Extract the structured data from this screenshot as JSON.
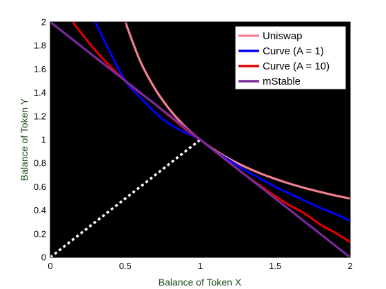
{
  "chart_data": {
    "type": "line",
    "title": "",
    "xlabel": "Balance of Token X",
    "ylabel": "Balance of Token Y",
    "xlim": [
      0,
      2
    ],
    "ylim": [
      0,
      2
    ],
    "xticks": [
      0,
      0.5,
      1,
      1.5,
      2
    ],
    "xtick_labels": [
      "0",
      "0.5",
      "1",
      "1.5",
      "2"
    ],
    "yticks": [
      0,
      0.2,
      0.4,
      0.6,
      0.8,
      1,
      1.2,
      1.4,
      1.6,
      1.8,
      2
    ],
    "ytick_labels": [
      "0",
      "0.2",
      "0.4",
      "0.6",
      "0.8",
      "1",
      "1.2",
      "1.4",
      "1.6",
      "1.8",
      "2"
    ],
    "plot_background": "#000000",
    "grid": false,
    "legend_position": "top-right",
    "series": [
      {
        "name": "Uniswap",
        "color": "#f08090",
        "x": [
          0.5,
          0.6,
          0.7,
          0.8,
          0.9,
          1.0,
          1.1,
          1.2,
          1.3,
          1.4,
          1.5,
          1.6,
          1.7,
          1.8,
          1.9,
          2.0
        ],
        "y": [
          2.0,
          1.667,
          1.429,
          1.25,
          1.111,
          1.0,
          0.909,
          0.833,
          0.769,
          0.714,
          0.667,
          0.625,
          0.588,
          0.556,
          0.526,
          0.5
        ]
      },
      {
        "name": "Curve (A = 1)",
        "color": "#0000ee",
        "x": [
          0.3,
          0.4,
          0.5,
          0.6,
          0.7,
          0.8,
          0.9,
          1.0,
          1.1,
          1.2,
          1.3,
          1.4,
          1.5,
          1.6,
          1.7,
          1.8,
          1.9,
          2.0
        ],
        "y": [
          2.0,
          1.74,
          1.5,
          1.36,
          1.23,
          1.13,
          1.06,
          1.0,
          0.9,
          0.82,
          0.74,
          0.67,
          0.6,
          0.54,
          0.48,
          0.42,
          0.37,
          0.31
        ]
      },
      {
        "name": "Curve (A = 10)",
        "color": "#dd0000",
        "x": [
          0.15,
          0.3,
          0.5,
          0.7,
          0.9,
          1.0,
          1.1,
          1.3,
          1.5,
          1.6,
          1.7,
          1.8,
          1.9,
          2.0
        ],
        "y": [
          2.0,
          1.76,
          1.5,
          1.3,
          1.09,
          1.0,
          0.9,
          0.7,
          0.52,
          0.44,
          0.37,
          0.28,
          0.21,
          0.13
        ]
      },
      {
        "name": "mStable",
        "color": "#7a2a9a",
        "x": [
          0.0,
          1.0,
          2.0
        ],
        "y": [
          2.0,
          1.0,
          0.0
        ]
      }
    ],
    "annotations": [
      {
        "kind": "dotted-line",
        "color": "#ffffff",
        "x": [
          0,
          1
        ],
        "y": [
          0,
          1
        ]
      }
    ]
  }
}
